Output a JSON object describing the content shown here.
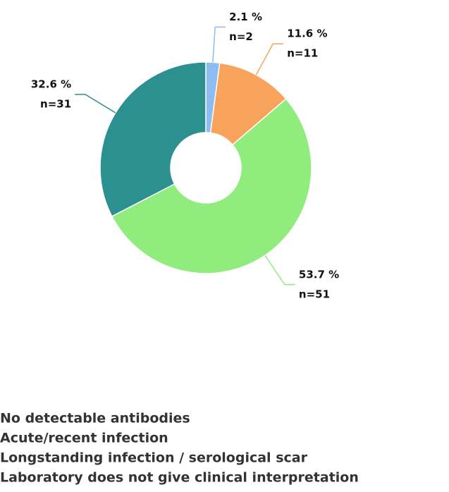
{
  "chart_data": {
    "type": "donut",
    "categories": [
      "No detectable antibodies",
      "Acute/recent infection",
      "Longstanding infection / serological scar",
      "Laboratory does not give clinical interpretation"
    ],
    "values": [
      2.1,
      11.6,
      53.7,
      32.6
    ],
    "value_labels": [
      "2.1 %",
      "11.6 %",
      "53.7 %",
      "32.6 %"
    ],
    "counts": [
      2,
      11,
      51,
      31
    ],
    "count_labels": [
      "n=2",
      "n=11",
      "n=51",
      "n=31"
    ],
    "colors": [
      "#8fbcf0",
      "#f7a35c",
      "#90ed7d",
      "#2b908f"
    ]
  }
}
